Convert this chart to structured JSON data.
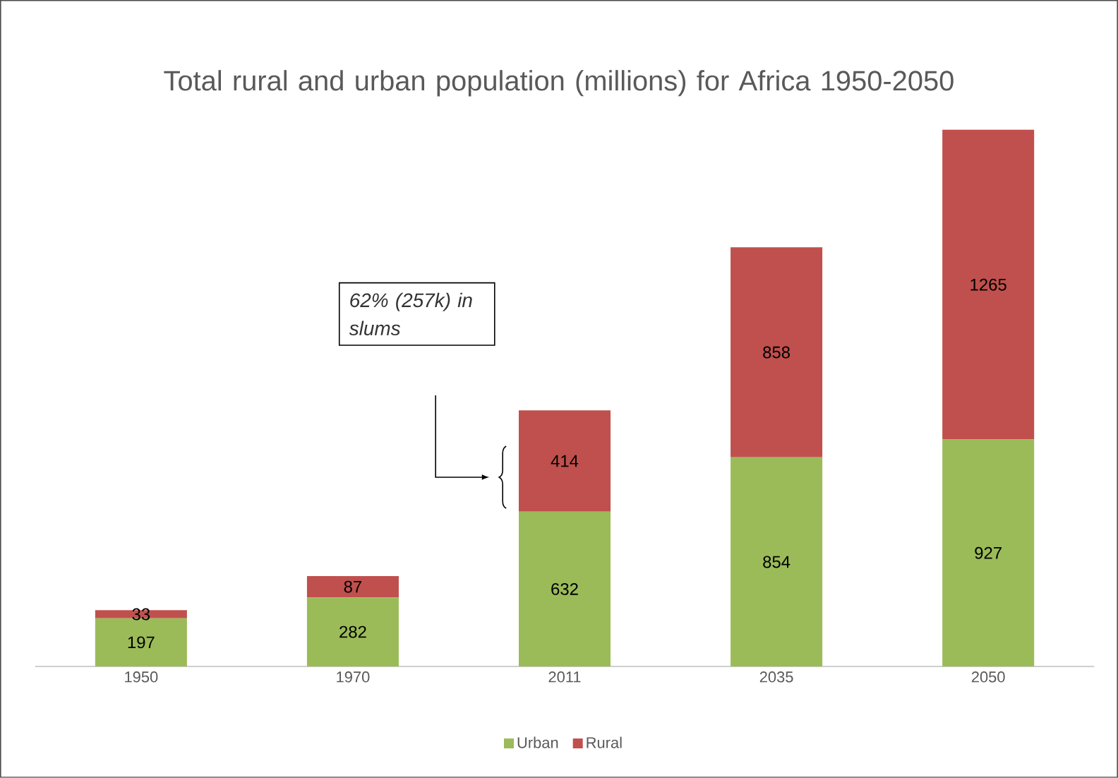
{
  "chart_data": {
    "type": "bar",
    "title": "Total rural and urban population (millions) for Africa 1950-2050",
    "categories": [
      "1950",
      "1970",
      "2011",
      "2035",
      "2050"
    ],
    "stacked": true,
    "data_labels": true,
    "legend": "bottom",
    "series": [
      {
        "name": "Urban",
        "color": "#9bbb59",
        "values": [
          197,
          282,
          632,
          854,
          927
        ]
      },
      {
        "name": "Rural",
        "color": "#c0504d",
        "values": [
          33,
          87,
          414,
          858,
          1265
        ]
      }
    ],
    "annotations": [
      "*62% (257k) in slums*"
    ]
  }
}
